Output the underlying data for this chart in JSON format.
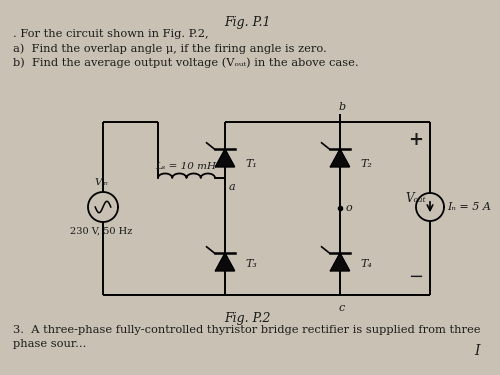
{
  "title_top": "Fig. P.1",
  "fig_caption": "Fig. P.2",
  "problem_text_line1": ". For the circuit shown in Fig. P.2,",
  "problem_text_line2": "a)  Find the overlap angle μ, if the firing angle is zero.",
  "problem_text_line3": "b)  Find the average output voltage (Vₒᵤₜ) in the above case.",
  "bg_color": "#c9c2b4",
  "text_color": "#1a1a1a",
  "label_Ls": "Lₛ = 10 mH",
  "label_Vin": "Vᵢₙ",
  "label_Vin2": "230 V, 50 Hz",
  "label_T1": "T₁",
  "label_T2": "T₂",
  "label_T3": "T₃",
  "label_T4": "T₄",
  "label_Vout": "Vₒᵤₜ",
  "label_Id": "Iₙ = 5 A",
  "label_a": "a",
  "label_b": "b",
  "label_c": "c",
  "label_o": "o",
  "label_plus": "+",
  "label_minus": "−",
  "bottom_text": "3.  A three-phase fully-controlled thyristor bridge rectifier is supplied from three",
  "bottom_text2": "phase sour...",
  "bottom_right": "I"
}
